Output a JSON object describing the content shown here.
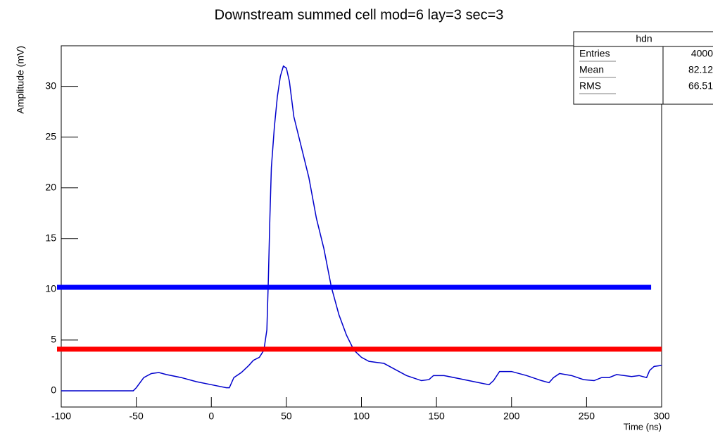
{
  "chart_data": {
    "type": "line",
    "title": "Downstream summed cell mod=6 lay=3 sec=3",
    "xlabel": "Time (ns)",
    "ylabel": "Amplitude (mV)",
    "xlim": [
      -100,
      300
    ],
    "ylim": [
      -1.6,
      34
    ],
    "xticks": [
      -100,
      -50,
      0,
      50,
      100,
      150,
      200,
      250,
      300
    ],
    "yticks": [
      0,
      5,
      10,
      15,
      20,
      25,
      30
    ],
    "series": [
      {
        "color": "#0000cc",
        "x": [
          -100,
          -52,
          -50,
          -45,
          -40,
          -35,
          -30,
          -20,
          -10,
          0,
          10,
          12,
          15,
          20,
          25,
          28,
          32,
          35,
          37,
          38,
          39,
          40,
          42,
          44,
          46,
          48,
          50,
          52,
          55,
          60,
          65,
          70,
          75,
          80,
          85,
          90,
          95,
          100,
          105,
          110,
          115,
          120,
          130,
          140,
          145,
          148,
          155,
          165,
          175,
          185,
          188,
          192,
          200,
          210,
          220,
          225,
          228,
          232,
          240,
          248,
          255,
          260,
          265,
          270,
          280,
          285,
          290,
          292,
          295,
          300
        ],
        "values": [
          0,
          0,
          0.3,
          1.3,
          1.7,
          1.8,
          1.6,
          1.3,
          0.9,
          0.6,
          0.3,
          0.3,
          1.3,
          1.8,
          2.5,
          3.0,
          3.3,
          4.0,
          6,
          11,
          17,
          22,
          26,
          29,
          31,
          32,
          31.8,
          30.5,
          27,
          24,
          21,
          17,
          14,
          10.2,
          7.5,
          5.5,
          4,
          3.3,
          2.9,
          2.8,
          2.7,
          2.3,
          1.5,
          1.0,
          1.1,
          1.5,
          1.5,
          1.2,
          0.9,
          0.6,
          1.0,
          1.9,
          1.9,
          1.5,
          1.0,
          0.8,
          1.3,
          1.7,
          1.5,
          1.1,
          1.0,
          1.3,
          1.3,
          1.6,
          1.4,
          1.5,
          1.3,
          2.0,
          2.4,
          2.5
        ]
      }
    ],
    "hlines": [
      {
        "value": 10.2,
        "color": "#0000ff",
        "x": [
          -100,
          293
        ]
      },
      {
        "value": 4.1,
        "color": "#ff0000",
        "x": [
          -100,
          300
        ]
      }
    ],
    "stats_box": {
      "title": "hdn",
      "rows": [
        {
          "label": "Entries",
          "value": 4000
        },
        {
          "label": "Mean",
          "value": 82.12
        },
        {
          "label": "RMS",
          "value": 66.51
        }
      ]
    }
  }
}
